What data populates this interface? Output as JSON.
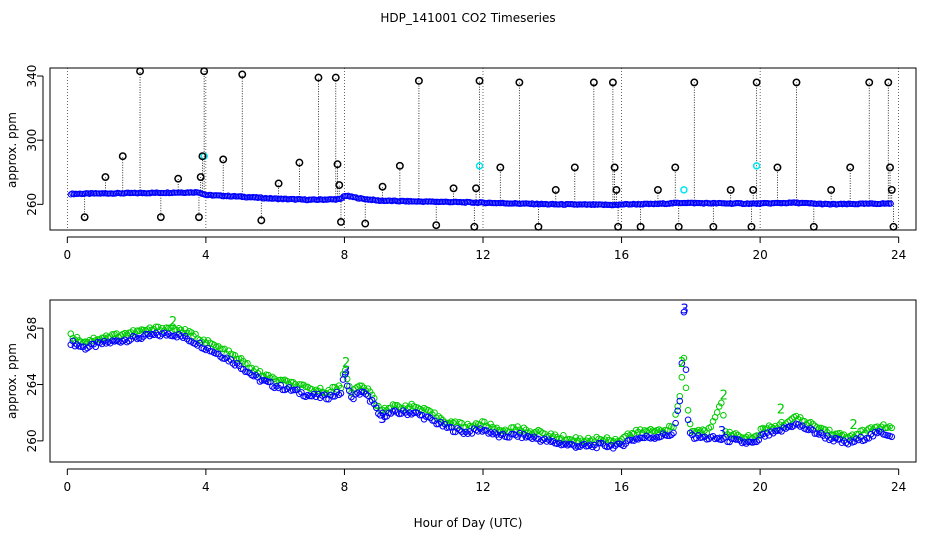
{
  "title": "HDP_141001  CO2 Timeseries",
  "xlabel": "Hour of Day (UTC)",
  "colors": {
    "series1": "#0000ff",
    "series2": "#00cc00",
    "flagged": "#000000",
    "highlight": "#00e5ee"
  },
  "chart_data": [
    {
      "type": "scatter",
      "ylabel": "approx. ppm",
      "xlim": [
        -0.5,
        24.5
      ],
      "ylim": [
        244,
        345
      ],
      "xticks": [
        0,
        4,
        8,
        12,
        16,
        20,
        24
      ],
      "yticks": [
        260,
        300,
        340
      ],
      "baseline": [
        [
          0.1,
          266.5
        ],
        [
          1,
          266.8
        ],
        [
          2,
          267.0
        ],
        [
          3,
          267.3
        ],
        [
          3.8,
          267.5
        ],
        [
          4.0,
          265.8
        ],
        [
          5,
          264.8
        ],
        [
          6,
          263.5
        ],
        [
          7,
          262.8
        ],
        [
          7.9,
          263.2
        ],
        [
          8.0,
          265.5
        ],
        [
          8.5,
          263.5
        ],
        [
          9,
          262.3
        ],
        [
          10,
          261.8
        ],
        [
          11,
          261.5
        ],
        [
          12,
          261.0
        ],
        [
          13,
          260.5
        ],
        [
          14,
          260.0
        ],
        [
          15,
          259.8
        ],
        [
          15.9,
          259.6
        ],
        [
          16,
          260.0
        ],
        [
          17,
          260.2
        ],
        [
          17.8,
          261.0
        ],
        [
          18,
          260.8
        ],
        [
          19,
          260.6
        ],
        [
          19.9,
          260.4
        ],
        [
          20,
          260.5
        ],
        [
          21,
          261.0
        ],
        [
          22,
          260.0
        ],
        [
          23,
          260.3
        ],
        [
          23.8,
          260.5
        ]
      ],
      "highlight_points": [
        [
          3.95,
          290
        ],
        [
          11.9,
          284
        ],
        [
          17.8,
          269
        ],
        [
          19.9,
          284
        ]
      ],
      "flagged_points": [
        [
          0.5,
          252
        ],
        [
          1.1,
          277
        ],
        [
          1.6,
          290
        ],
        [
          2.1,
          343
        ],
        [
          2.7,
          252
        ],
        [
          3.2,
          276
        ],
        [
          3.8,
          252
        ],
        [
          3.85,
          277
        ],
        [
          3.9,
          290
        ],
        [
          3.95,
          343
        ],
        [
          4.5,
          288
        ],
        [
          5.05,
          341
        ],
        [
          5.6,
          250
        ],
        [
          6.1,
          273
        ],
        [
          6.7,
          286
        ],
        [
          7.25,
          339
        ],
        [
          7.75,
          339
        ],
        [
          7.8,
          285
        ],
        [
          7.85,
          272
        ],
        [
          7.9,
          249
        ],
        [
          8.6,
          248
        ],
        [
          9.1,
          271
        ],
        [
          9.6,
          284
        ],
        [
          10.15,
          337
        ],
        [
          10.65,
          247
        ],
        [
          11.15,
          270
        ],
        [
          11.75,
          246
        ],
        [
          11.8,
          270
        ],
        [
          11.9,
          337
        ],
        [
          12.5,
          283
        ],
        [
          13.05,
          336
        ],
        [
          13.6,
          246
        ],
        [
          14.1,
          269
        ],
        [
          14.65,
          283
        ],
        [
          15.2,
          336
        ],
        [
          15.75,
          336
        ],
        [
          15.8,
          283
        ],
        [
          15.85,
          269
        ],
        [
          15.9,
          246
        ],
        [
          16.55,
          246
        ],
        [
          17.05,
          269
        ],
        [
          17.55,
          283
        ],
        [
          17.65,
          246
        ],
        [
          18.1,
          336
        ],
        [
          18.65,
          246
        ],
        [
          19.15,
          269
        ],
        [
          19.75,
          246
        ],
        [
          19.8,
          269
        ],
        [
          19.9,
          336
        ],
        [
          20.5,
          283
        ],
        [
          21.05,
          336
        ],
        [
          21.55,
          246
        ],
        [
          22.05,
          269
        ],
        [
          22.6,
          283
        ],
        [
          23.15,
          336
        ],
        [
          23.7,
          336
        ],
        [
          23.75,
          283
        ],
        [
          23.8,
          269
        ],
        [
          23.85,
          246
        ]
      ]
    },
    {
      "type": "scatter",
      "ylabel": "approx. ppm",
      "xlim": [
        -0.5,
        24.5
      ],
      "ylim": [
        258.5,
        270
      ],
      "xticks": [
        0,
        4,
        8,
        12,
        16,
        20,
        24
      ],
      "yticks": [
        260,
        264,
        268
      ],
      "series": [
        {
          "offset": 0,
          "points": [
            [
              0.1,
              267.0
            ],
            [
              0.5,
              266.6
            ],
            [
              1,
              266.9
            ],
            [
              1.5,
              267.1
            ],
            [
              2,
              267.3
            ],
            [
              2.5,
              267.5
            ],
            [
              3,
              267.6
            ],
            [
              3.3,
              267.4
            ],
            [
              3.7,
              267.0
            ],
            [
              4,
              266.6
            ],
            [
              4.5,
              266.0
            ],
            [
              5,
              265.3
            ],
            [
              5.5,
              264.4
            ],
            [
              6,
              263.9
            ],
            [
              6.5,
              263.6
            ],
            [
              7,
              263.2
            ],
            [
              7.5,
              263.1
            ],
            [
              7.9,
              263.4
            ],
            [
              8.0,
              264.8
            ],
            [
              8.2,
              263.0
            ],
            [
              8.5,
              263.5
            ],
            [
              8.8,
              262.8
            ],
            [
              9,
              261.8
            ],
            [
              9.5,
              262.0
            ],
            [
              10,
              262.0
            ],
            [
              10.5,
              261.5
            ],
            [
              11,
              260.9
            ],
            [
              11.5,
              260.6
            ],
            [
              12,
              260.8
            ],
            [
              12.5,
              260.3
            ],
            [
              13,
              260.4
            ],
            [
              13.5,
              260.2
            ],
            [
              14,
              259.9
            ],
            [
              14.5,
              259.7
            ],
            [
              15,
              259.6
            ],
            [
              15.5,
              259.7
            ],
            [
              15.9,
              259.6
            ],
            [
              16.2,
              260.0
            ],
            [
              16.5,
              260.2
            ],
            [
              17,
              260.3
            ],
            [
              17.5,
              260.5
            ],
            [
              17.7,
              263.0
            ],
            [
              17.8,
              269.2
            ],
            [
              17.9,
              262.0
            ],
            [
              18,
              260.3
            ],
            [
              18.5,
              260.2
            ],
            [
              19,
              260.1
            ],
            [
              19.5,
              259.9
            ],
            [
              19.9,
              259.8
            ],
            [
              20,
              260.3
            ],
            [
              20.5,
              260.6
            ],
            [
              21,
              261.2
            ],
            [
              21.5,
              260.7
            ],
            [
              22,
              260.2
            ],
            [
              22.5,
              259.8
            ],
            [
              23,
              260.2
            ],
            [
              23.5,
              260.6
            ],
            [
              23.8,
              260.4
            ]
          ]
        },
        {
          "offset": 0.45,
          "points": [
            [
              0.1,
              267.0
            ],
            [
              0.5,
              266.6
            ],
            [
              1,
              266.9
            ],
            [
              1.5,
              267.1
            ],
            [
              2,
              267.3
            ],
            [
              2.5,
              267.5
            ],
            [
              3,
              267.6
            ],
            [
              3.3,
              267.4
            ],
            [
              3.7,
              267.0
            ],
            [
              4,
              266.6
            ],
            [
              4.5,
              266.0
            ],
            [
              5,
              265.3
            ],
            [
              5.5,
              264.4
            ],
            [
              6,
              263.9
            ],
            [
              6.5,
              263.6
            ],
            [
              7,
              263.2
            ],
            [
              7.5,
              263.1
            ],
            [
              7.9,
              263.4
            ],
            [
              8.0,
              264.8
            ],
            [
              8.2,
              263.0
            ],
            [
              8.5,
              263.5
            ],
            [
              8.8,
              262.8
            ],
            [
              9,
              261.8
            ],
            [
              9.5,
              262.0
            ],
            [
              10,
              262.0
            ],
            [
              10.5,
              261.5
            ],
            [
              11,
              260.9
            ],
            [
              11.5,
              260.6
            ],
            [
              12,
              260.8
            ],
            [
              12.5,
              260.3
            ],
            [
              13,
              260.4
            ],
            [
              13.5,
              260.2
            ],
            [
              14,
              259.9
            ],
            [
              14.5,
              259.7
            ],
            [
              15,
              259.6
            ],
            [
              15.5,
              259.7
            ],
            [
              15.9,
              259.6
            ],
            [
              16.2,
              260.0
            ],
            [
              16.5,
              260.2
            ],
            [
              17,
              260.3
            ],
            [
              17.5,
              260.5
            ],
            [
              17.7,
              263.0
            ],
            [
              17.8,
              265.5
            ],
            [
              17.9,
              262.0
            ],
            [
              18,
              260.3
            ],
            [
              18.5,
              260.2
            ],
            [
              18.9,
              262.5
            ],
            [
              19,
              260.1
            ],
            [
              19.5,
              259.9
            ],
            [
              19.9,
              259.8
            ],
            [
              20,
              260.3
            ],
            [
              20.5,
              260.6
            ],
            [
              21,
              261.2
            ],
            [
              21.5,
              260.7
            ],
            [
              22,
              260.2
            ],
            [
              22.5,
              259.8
            ],
            [
              23,
              260.2
            ],
            [
              23.5,
              260.6
            ],
            [
              23.8,
              260.4
            ]
          ]
        }
      ],
      "labels": [
        {
          "x": 17.82,
          "y": 269.3,
          "text": "3",
          "series": 0
        },
        {
          "x": 8.05,
          "y": 264.9,
          "text": "3",
          "series": 0
        },
        {
          "x": 9.1,
          "y": 261.5,
          "text": "3",
          "series": 0
        },
        {
          "x": 18.9,
          "y": 260.6,
          "text": "3",
          "series": 0
        },
        {
          "x": 17.75,
          "y": 265.5,
          "text": "2",
          "series": 1
        },
        {
          "x": 18.95,
          "y": 263.2,
          "text": "2",
          "series": 1
        },
        {
          "x": 8.05,
          "y": 265.5,
          "text": "2",
          "series": 1
        },
        {
          "x": 3.05,
          "y": 268.4,
          "text": "2",
          "series": 1
        },
        {
          "x": 20.6,
          "y": 262.2,
          "text": "2",
          "series": 1
        },
        {
          "x": 22.7,
          "y": 261.1,
          "text": "2",
          "series": 1
        }
      ]
    }
  ]
}
